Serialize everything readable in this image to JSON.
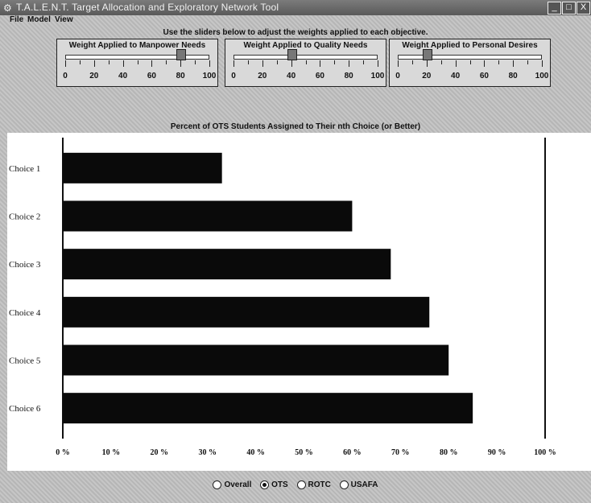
{
  "window": {
    "title": "T.A.L.E.N.T.   Target Allocation and Exploratory Network Tool",
    "controls": [
      "_",
      "□",
      "X"
    ]
  },
  "menu": [
    "File",
    "Model",
    "View"
  ],
  "instruction": "Use the sliders below to adjust the weights applied to each objective.",
  "sliders": [
    {
      "label": "Weight Applied to Manpower Needs",
      "value": 80,
      "ticks": [
        "0",
        "20",
        "40",
        "60",
        "80",
        "100"
      ]
    },
    {
      "label": "Weight Applied to Quality Needs",
      "value": 40,
      "ticks": [
        "0",
        "20",
        "40",
        "60",
        "80",
        "100"
      ]
    },
    {
      "label": "Weight Applied to Personal Desires",
      "value": 20,
      "ticks": [
        "0",
        "20",
        "40",
        "60",
        "80",
        "100"
      ]
    }
  ],
  "chart_title": "Percent of OTS Students Assigned to Their nth Choice (or Better)",
  "chart_data": {
    "type": "bar",
    "orientation": "horizontal",
    "title": "Percent of OTS Students Assigned to Their nth Choice (or Better)",
    "categories": [
      "Choice 1",
      "Choice 2",
      "Choice 3",
      "Choice 4",
      "Choice 5",
      "Choice 6"
    ],
    "values": [
      33,
      60,
      68,
      76,
      80,
      85
    ],
    "xlim": [
      0,
      100
    ],
    "xticks": [
      "0 %",
      "10 %",
      "20 %",
      "30 %",
      "40 %",
      "50 %",
      "60 %",
      "70 %",
      "80 %",
      "90 %",
      "100 %"
    ],
    "bar_color": "#0a0a0a"
  },
  "radios": [
    {
      "label": "Overall",
      "selected": false
    },
    {
      "label": "OTS",
      "selected": true
    },
    {
      "label": "ROTC",
      "selected": false
    },
    {
      "label": "USAFA",
      "selected": false
    }
  ]
}
